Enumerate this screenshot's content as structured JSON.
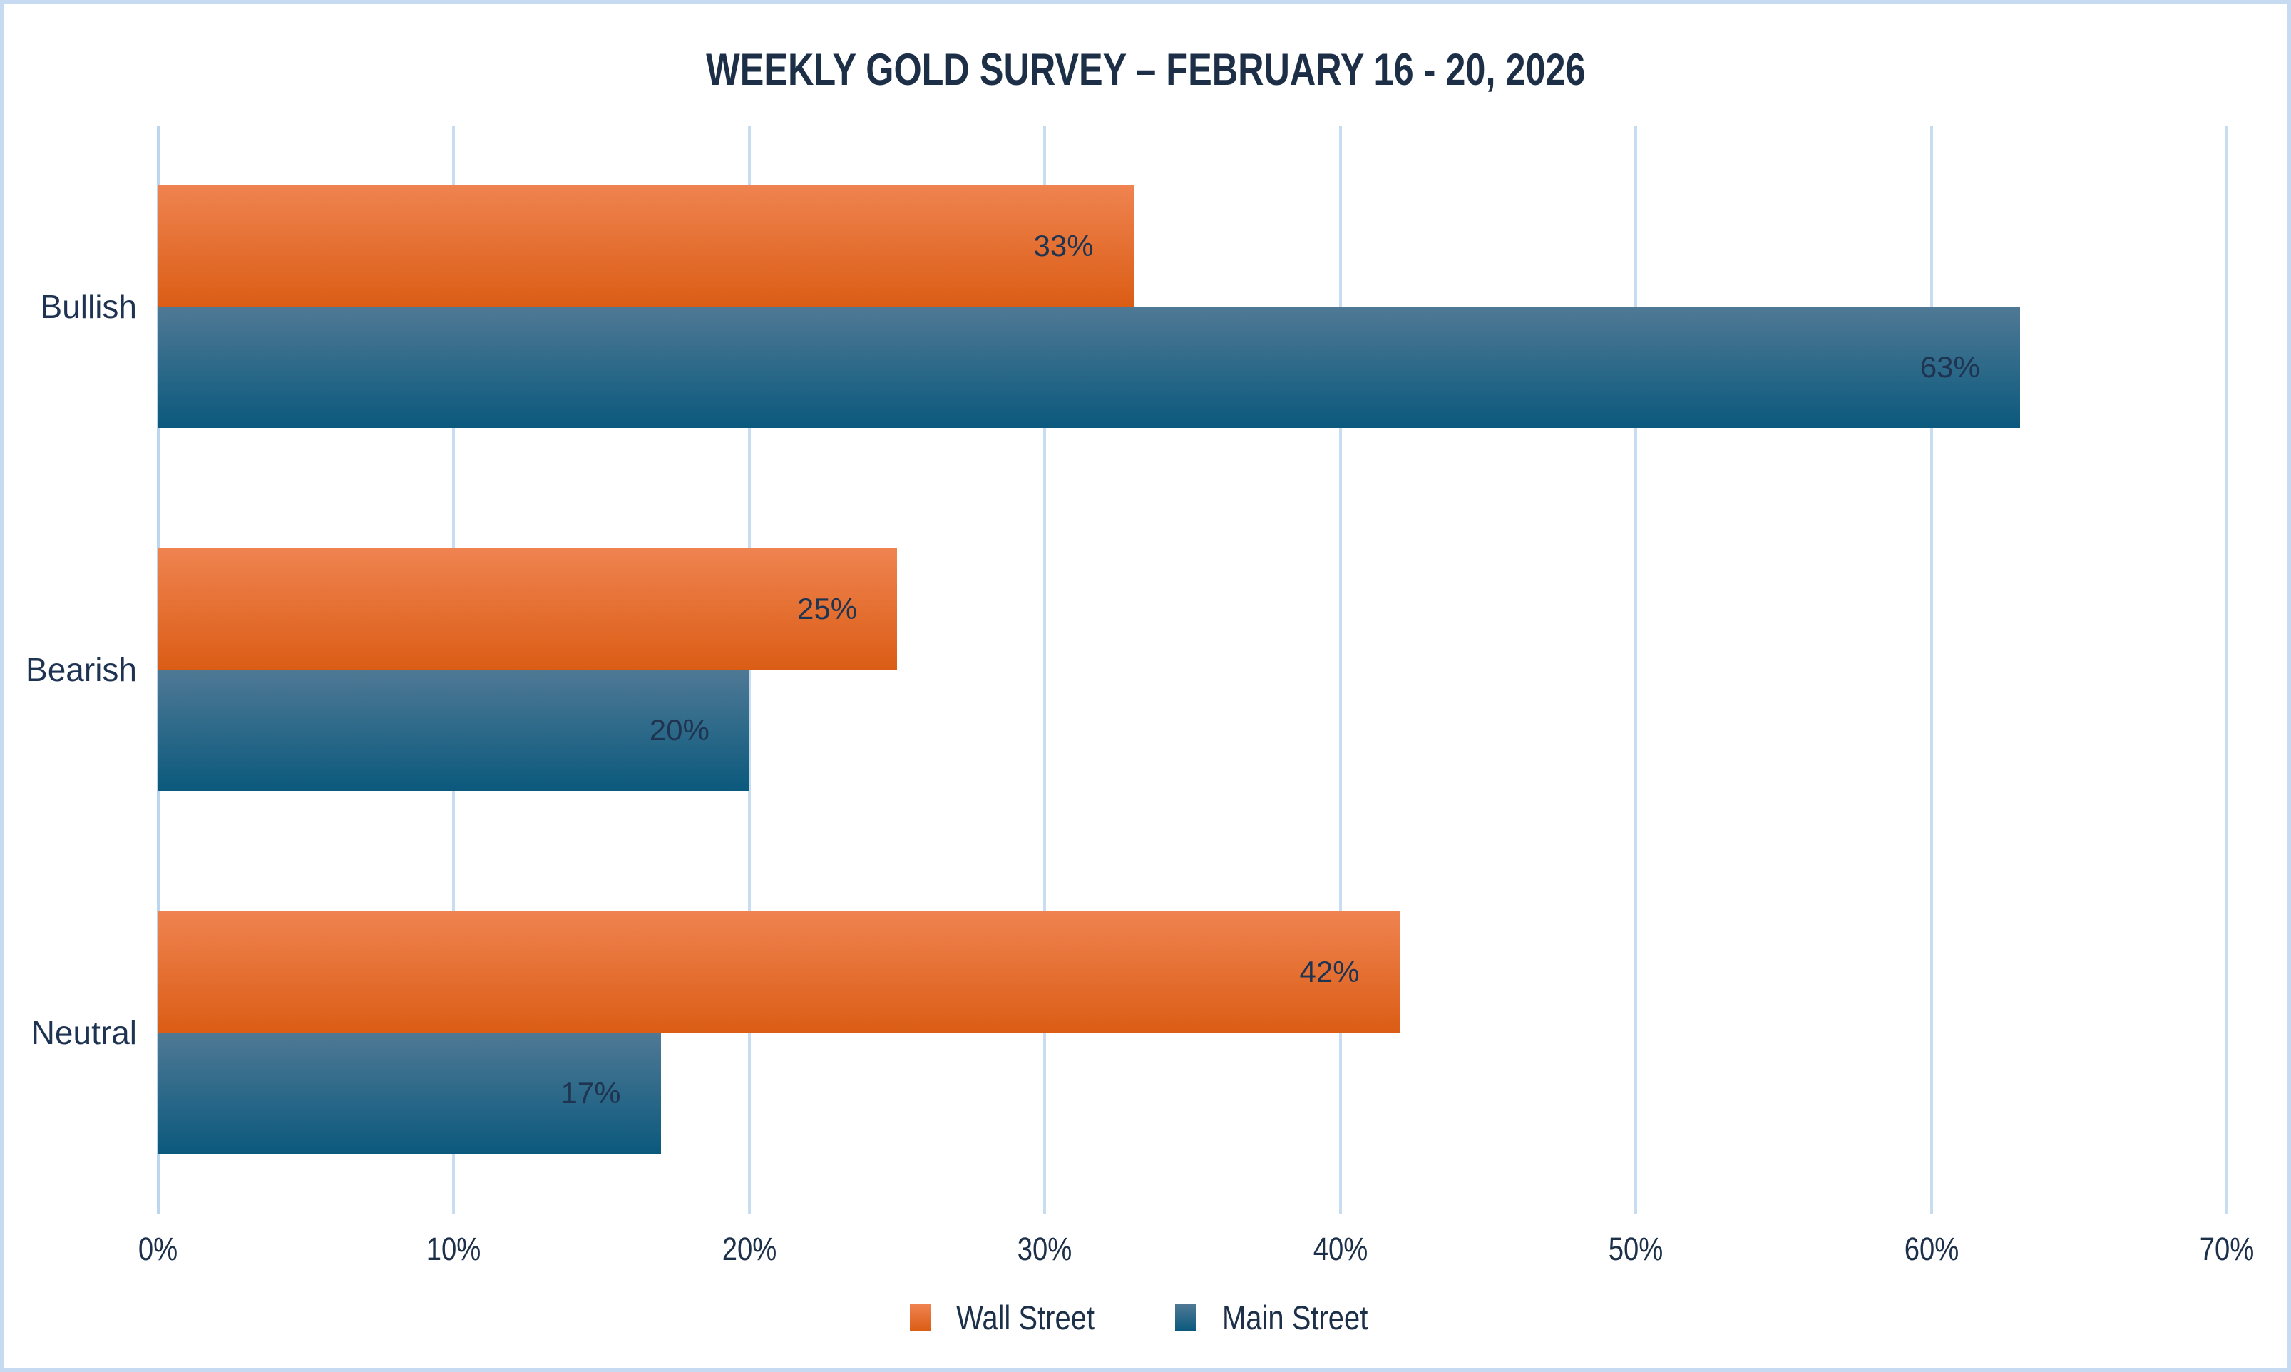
{
  "title": "WEEKLY GOLD SURVEY – FEBRUARY 16 - 20, 2026",
  "colors": {
    "border": "#c6daf2",
    "gridline": "#c8ddf2",
    "title_text": "#1d2f47",
    "label_text": "#1f3450",
    "wall_street_gradient_top": "#ef8350",
    "wall_street_gradient_bottom": "#db5d15",
    "main_street_gradient_top": "#4f7995",
    "main_street_gradient_bottom": "#0b597d"
  },
  "chart_data": {
    "type": "bar",
    "orientation": "horizontal",
    "title": "WEEKLY GOLD SURVEY – FEBRUARY 16 - 20, 2026",
    "categories": [
      "Bullish",
      "Bearish",
      "Neutral"
    ],
    "series": [
      {
        "name": "Wall Street",
        "color": "#e8702e",
        "values": [
          33,
          25,
          42
        ],
        "labels": [
          "33%",
          "25%",
          "42%"
        ]
      },
      {
        "name": "Main Street",
        "color": "#155e81",
        "values": [
          63,
          20,
          17
        ],
        "labels": [
          "63%",
          "20%",
          "17%"
        ]
      }
    ],
    "xlim": [
      0,
      70
    ],
    "x_ticks": [
      "0%",
      "10%",
      "20%",
      "30%",
      "40%",
      "50%",
      "60%",
      "70%"
    ],
    "grid": true,
    "legend_position": "bottom",
    "xlabel": "",
    "ylabel": ""
  },
  "legend": {
    "items": [
      {
        "label": "Wall Street"
      },
      {
        "label": "Main Street"
      }
    ]
  }
}
